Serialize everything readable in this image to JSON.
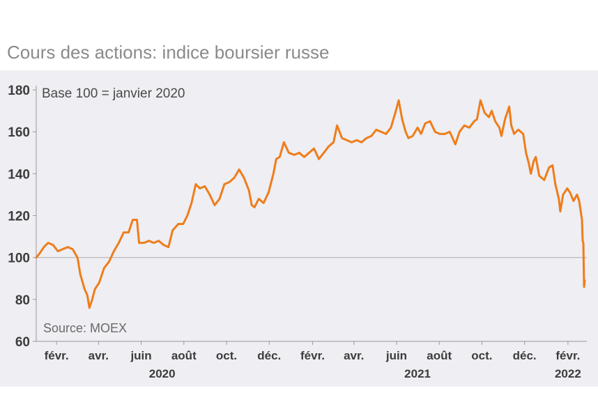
{
  "title": "Cours des actions: indice boursier russe",
  "chart_data": {
    "type": "line",
    "annotation": "Base 100 = janvier 2020",
    "source": "Source: MOEX",
    "ylim": [
      60,
      180
    ],
    "yticks": [
      60,
      80,
      100,
      120,
      140,
      160,
      180
    ],
    "reference_line": 100,
    "grid": false,
    "x_range": [
      "2020-01-03",
      "2022-02-28"
    ],
    "month_ticks": [
      {
        "label": "févr.",
        "date": "2020-02-01"
      },
      {
        "label": "avr.",
        "date": "2020-04-01"
      },
      {
        "label": "juin",
        "date": "2020-06-01"
      },
      {
        "label": "août",
        "date": "2020-08-01"
      },
      {
        "label": "oct.",
        "date": "2020-10-01"
      },
      {
        "label": "déc.",
        "date": "2020-12-01"
      },
      {
        "label": "févr.",
        "date": "2021-02-01"
      },
      {
        "label": "avr.",
        "date": "2021-04-01"
      },
      {
        "label": "juin",
        "date": "2021-06-01"
      },
      {
        "label": "août",
        "date": "2021-08-01"
      },
      {
        "label": "oct.",
        "date": "2021-10-01"
      },
      {
        "label": "déc.",
        "date": "2021-12-01"
      },
      {
        "label": "févr.",
        "date": "2022-02-01"
      }
    ],
    "year_labels": [
      {
        "label": "2020",
        "date": "2020-07-01"
      },
      {
        "label": "2021",
        "date": "2021-07-01"
      },
      {
        "label": "2022",
        "date": "2022-02-01"
      }
    ],
    "series": [
      {
        "color": "#ee7d1a",
        "points": [
          [
            "2020-01-03",
            100
          ],
          [
            "2020-01-08",
            102
          ],
          [
            "2020-01-14",
            105
          ],
          [
            "2020-01-20",
            107
          ],
          [
            "2020-01-27",
            106
          ],
          [
            "2020-02-03",
            103
          ],
          [
            "2020-02-10",
            104
          ],
          [
            "2020-02-17",
            105
          ],
          [
            "2020-02-24",
            104
          ],
          [
            "2020-03-02",
            100
          ],
          [
            "2020-03-06",
            92
          ],
          [
            "2020-03-12",
            85
          ],
          [
            "2020-03-16",
            82
          ],
          [
            "2020-03-19",
            76
          ],
          [
            "2020-03-23",
            80
          ],
          [
            "2020-03-27",
            85
          ],
          [
            "2020-04-02",
            88
          ],
          [
            "2020-04-09",
            95
          ],
          [
            "2020-04-16",
            98
          ],
          [
            "2020-04-23",
            103
          ],
          [
            "2020-04-30",
            107
          ],
          [
            "2020-05-07",
            112
          ],
          [
            "2020-05-14",
            112
          ],
          [
            "2020-05-20",
            118
          ],
          [
            "2020-05-26",
            118
          ],
          [
            "2020-05-29",
            107
          ],
          [
            "2020-06-05",
            107
          ],
          [
            "2020-06-12",
            108
          ],
          [
            "2020-06-19",
            107
          ],
          [
            "2020-06-26",
            108
          ],
          [
            "2020-07-03",
            106
          ],
          [
            "2020-07-10",
            105
          ],
          [
            "2020-07-16",
            113
          ],
          [
            "2020-07-24",
            116
          ],
          [
            "2020-07-31",
            116
          ],
          [
            "2020-08-06",
            120
          ],
          [
            "2020-08-12",
            126
          ],
          [
            "2020-08-18",
            135
          ],
          [
            "2020-08-24",
            133
          ],
          [
            "2020-08-31",
            134
          ],
          [
            "2020-09-07",
            130
          ],
          [
            "2020-09-14",
            125
          ],
          [
            "2020-09-21",
            128
          ],
          [
            "2020-09-28",
            135
          ],
          [
            "2020-10-05",
            136
          ],
          [
            "2020-10-12",
            138
          ],
          [
            "2020-10-19",
            142
          ],
          [
            "2020-10-26",
            138
          ],
          [
            "2020-11-02",
            132
          ],
          [
            "2020-11-06",
            125
          ],
          [
            "2020-11-10",
            124
          ],
          [
            "2020-11-16",
            128
          ],
          [
            "2020-11-23",
            126
          ],
          [
            "2020-11-30",
            131
          ],
          [
            "2020-12-07",
            140
          ],
          [
            "2020-12-11",
            147
          ],
          [
            "2020-12-16",
            148
          ],
          [
            "2020-12-22",
            155
          ],
          [
            "2020-12-29",
            150
          ],
          [
            "2021-01-06",
            149
          ],
          [
            "2021-01-13",
            150
          ],
          [
            "2021-01-20",
            148
          ],
          [
            "2021-01-27",
            150
          ],
          [
            "2021-02-03",
            152
          ],
          [
            "2021-02-10",
            147
          ],
          [
            "2021-02-17",
            150
          ],
          [
            "2021-02-24",
            153
          ],
          [
            "2021-03-03",
            155
          ],
          [
            "2021-03-08",
            163
          ],
          [
            "2021-03-15",
            157
          ],
          [
            "2021-03-22",
            156
          ],
          [
            "2021-03-29",
            155
          ],
          [
            "2021-04-05",
            156
          ],
          [
            "2021-04-12",
            155
          ],
          [
            "2021-04-19",
            157
          ],
          [
            "2021-04-26",
            158
          ],
          [
            "2021-05-03",
            161
          ],
          [
            "2021-05-10",
            160
          ],
          [
            "2021-05-17",
            159
          ],
          [
            "2021-05-24",
            162
          ],
          [
            "2021-05-31",
            170
          ],
          [
            "2021-06-04",
            175
          ],
          [
            "2021-06-09",
            166
          ],
          [
            "2021-06-14",
            160
          ],
          [
            "2021-06-18",
            157
          ],
          [
            "2021-06-24",
            158
          ],
          [
            "2021-07-01",
            162
          ],
          [
            "2021-07-06",
            159
          ],
          [
            "2021-07-12",
            164
          ],
          [
            "2021-07-19",
            165
          ],
          [
            "2021-07-26",
            160
          ],
          [
            "2021-08-02",
            159
          ],
          [
            "2021-08-09",
            159
          ],
          [
            "2021-08-16",
            160
          ],
          [
            "2021-08-20",
            157
          ],
          [
            "2021-08-24",
            154
          ],
          [
            "2021-08-30",
            160
          ],
          [
            "2021-09-06",
            163
          ],
          [
            "2021-09-13",
            162
          ],
          [
            "2021-09-20",
            165
          ],
          [
            "2021-09-24",
            166
          ],
          [
            "2021-09-29",
            175
          ],
          [
            "2021-10-05",
            169
          ],
          [
            "2021-10-11",
            167
          ],
          [
            "2021-10-15",
            170
          ],
          [
            "2021-10-20",
            165
          ],
          [
            "2021-10-26",
            162
          ],
          [
            "2021-10-29",
            158
          ],
          [
            "2021-11-03",
            166
          ],
          [
            "2021-11-09",
            172
          ],
          [
            "2021-11-12",
            163
          ],
          [
            "2021-11-16",
            159
          ],
          [
            "2021-11-22",
            161
          ],
          [
            "2021-11-29",
            159
          ],
          [
            "2021-12-03",
            150
          ],
          [
            "2021-12-07",
            145
          ],
          [
            "2021-12-10",
            140
          ],
          [
            "2021-12-14",
            146
          ],
          [
            "2021-12-17",
            148
          ],
          [
            "2021-12-22",
            139
          ],
          [
            "2021-12-29",
            137
          ],
          [
            "2022-01-05",
            143
          ],
          [
            "2022-01-10",
            144
          ],
          [
            "2022-01-14",
            135
          ],
          [
            "2022-01-19",
            128
          ],
          [
            "2022-01-21",
            122
          ],
          [
            "2022-01-25",
            130
          ],
          [
            "2022-01-31",
            133
          ],
          [
            "2022-02-04",
            131
          ],
          [
            "2022-02-09",
            127
          ],
          [
            "2022-02-14",
            130
          ],
          [
            "2022-02-17",
            127
          ],
          [
            "2022-02-21",
            118
          ],
          [
            "2022-02-22",
            108
          ],
          [
            "2022-02-23",
            107
          ],
          [
            "2022-02-24",
            86
          ],
          [
            "2022-02-25",
            89
          ]
        ]
      }
    ]
  }
}
